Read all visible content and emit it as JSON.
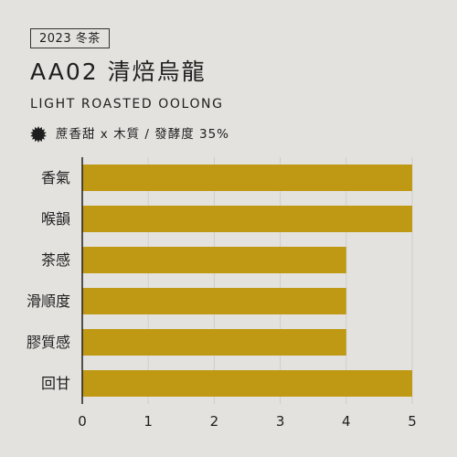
{
  "header": {
    "season_tag": "2023 冬茶",
    "title": "AA02 清焙烏龍",
    "subtitle": "LIGHT ROASTED OOLONG",
    "notes": "蔗香甜 x 木質 /  發酵度 35%"
  },
  "icons": {
    "badge": "sunburst-badge-icon"
  },
  "colors": {
    "bar": "#bf9914",
    "grid": "#cfcdca",
    "background": "#e4e2df",
    "text": "#1e1e1e"
  },
  "chart_data": {
    "type": "bar",
    "orientation": "horizontal",
    "categories": [
      "香氣",
      "喉韻",
      "茶感",
      "滑順度",
      "膠質感",
      "回甘"
    ],
    "values": [
      5,
      5,
      4,
      4,
      4,
      5
    ],
    "xlim": [
      0,
      5
    ],
    "xticks": [
      0,
      1,
      2,
      3,
      4,
      5
    ],
    "grid": true
  }
}
